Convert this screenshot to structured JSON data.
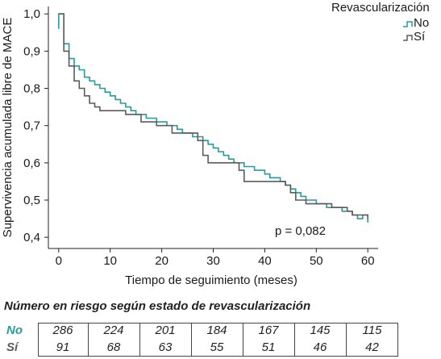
{
  "chart_data": {
    "type": "line",
    "subtype": "kaplan-meier-step",
    "ylabel": "Supervivencia acumulada libre de MACE",
    "xlabel": "Tiempo de seguimiento (meses)",
    "xlim": [
      -2,
      62
    ],
    "ylim": [
      0.37,
      1.02
    ],
    "x_ticks": [
      0,
      10,
      20,
      30,
      40,
      50,
      60
    ],
    "y_ticks": [
      0.4,
      0.5,
      0.6,
      0.7,
      0.8,
      0.9,
      1.0
    ],
    "x_tick_labels": [
      "0",
      "10",
      "20",
      "30",
      "40",
      "50",
      "60"
    ],
    "y_tick_labels": [
      "0,4",
      "0,5",
      "0,6",
      "0,7",
      "0,8",
      "0,9",
      "1,0"
    ],
    "grid": false,
    "legend": {
      "title": "Revascularización",
      "placement": "top-right"
    },
    "annotation": "p = 0,082",
    "series": [
      {
        "name": "No",
        "color": "#2a9a9e",
        "points": [
          [
            0,
            0.96
          ],
          [
            0,
            1.0
          ],
          [
            1,
            1.0
          ],
          [
            1,
            0.92
          ],
          [
            2,
            0.92
          ],
          [
            2,
            0.88
          ],
          [
            3,
            0.88
          ],
          [
            3,
            0.86
          ],
          [
            4,
            0.86
          ],
          [
            4,
            0.85
          ],
          [
            5,
            0.85
          ],
          [
            5,
            0.83
          ],
          [
            6,
            0.83
          ],
          [
            6,
            0.82
          ],
          [
            7,
            0.82
          ],
          [
            7,
            0.81
          ],
          [
            8,
            0.81
          ],
          [
            8,
            0.8
          ],
          [
            9,
            0.8
          ],
          [
            9,
            0.79
          ],
          [
            10,
            0.79
          ],
          [
            10,
            0.78
          ],
          [
            11,
            0.78
          ],
          [
            11,
            0.77
          ],
          [
            12,
            0.77
          ],
          [
            12,
            0.76
          ],
          [
            13,
            0.76
          ],
          [
            13,
            0.75
          ],
          [
            14,
            0.75
          ],
          [
            14,
            0.74
          ],
          [
            15,
            0.74
          ],
          [
            15,
            0.73
          ],
          [
            17,
            0.73
          ],
          [
            17,
            0.72
          ],
          [
            19,
            0.72
          ],
          [
            19,
            0.71
          ],
          [
            21,
            0.71
          ],
          [
            21,
            0.7
          ],
          [
            23,
            0.7
          ],
          [
            23,
            0.69
          ],
          [
            24,
            0.69
          ],
          [
            24,
            0.68
          ],
          [
            26,
            0.68
          ],
          [
            26,
            0.67
          ],
          [
            28,
            0.67
          ],
          [
            28,
            0.66
          ],
          [
            29,
            0.66
          ],
          [
            29,
            0.65
          ],
          [
            30,
            0.65
          ],
          [
            30,
            0.64
          ],
          [
            31,
            0.64
          ],
          [
            31,
            0.63
          ],
          [
            32,
            0.63
          ],
          [
            32,
            0.62
          ],
          [
            33,
            0.62
          ],
          [
            33,
            0.61
          ],
          [
            34,
            0.61
          ],
          [
            34,
            0.6
          ],
          [
            36,
            0.6
          ],
          [
            36,
            0.59
          ],
          [
            38,
            0.59
          ],
          [
            38,
            0.58
          ],
          [
            40,
            0.58
          ],
          [
            40,
            0.57
          ],
          [
            41,
            0.57
          ],
          [
            41,
            0.56
          ],
          [
            43,
            0.56
          ],
          [
            43,
            0.55
          ],
          [
            44,
            0.55
          ],
          [
            44,
            0.54
          ],
          [
            45,
            0.54
          ],
          [
            45,
            0.53
          ],
          [
            46,
            0.53
          ],
          [
            46,
            0.52
          ],
          [
            47,
            0.52
          ],
          [
            47,
            0.51
          ],
          [
            48,
            0.51
          ],
          [
            48,
            0.5
          ],
          [
            50,
            0.5
          ],
          [
            50,
            0.49
          ],
          [
            52,
            0.49
          ],
          [
            52,
            0.48
          ],
          [
            55,
            0.48
          ],
          [
            55,
            0.47
          ],
          [
            57,
            0.47
          ],
          [
            57,
            0.46
          ],
          [
            58,
            0.46
          ],
          [
            58,
            0.45
          ],
          [
            59,
            0.45
          ],
          [
            59,
            0.46
          ],
          [
            60,
            0.46
          ],
          [
            60,
            0.44
          ]
        ]
      },
      {
        "name": "Sí",
        "color": "#5c5c5c",
        "points": [
          [
            0,
            1.0
          ],
          [
            1,
            1.0
          ],
          [
            1,
            0.9
          ],
          [
            2,
            0.9
          ],
          [
            2,
            0.86
          ],
          [
            3,
            0.86
          ],
          [
            3,
            0.82
          ],
          [
            4,
            0.82
          ],
          [
            4,
            0.8
          ],
          [
            5,
            0.8
          ],
          [
            5,
            0.78
          ],
          [
            6,
            0.78
          ],
          [
            6,
            0.76
          ],
          [
            7,
            0.76
          ],
          [
            7,
            0.75
          ],
          [
            8,
            0.75
          ],
          [
            8,
            0.74
          ],
          [
            13,
            0.74
          ],
          [
            13,
            0.73
          ],
          [
            16,
            0.73
          ],
          [
            16,
            0.71
          ],
          [
            19,
            0.71
          ],
          [
            19,
            0.7
          ],
          [
            22,
            0.7
          ],
          [
            22,
            0.68
          ],
          [
            27,
            0.68
          ],
          [
            27,
            0.66
          ],
          [
            28,
            0.66
          ],
          [
            28,
            0.62
          ],
          [
            29,
            0.62
          ],
          [
            29,
            0.6
          ],
          [
            35,
            0.6
          ],
          [
            35,
            0.58
          ],
          [
            36,
            0.58
          ],
          [
            36,
            0.55
          ],
          [
            44,
            0.55
          ],
          [
            44,
            0.54
          ],
          [
            45,
            0.54
          ],
          [
            45,
            0.52
          ],
          [
            46,
            0.52
          ],
          [
            46,
            0.5
          ],
          [
            48,
            0.5
          ],
          [
            48,
            0.49
          ],
          [
            53,
            0.49
          ],
          [
            53,
            0.48
          ],
          [
            56,
            0.48
          ],
          [
            56,
            0.47
          ],
          [
            57,
            0.47
          ],
          [
            57,
            0.46
          ],
          [
            60,
            0.46
          ],
          [
            60,
            0.45
          ]
        ]
      }
    ]
  },
  "risk_table": {
    "title": "Número en riesgo según estado de revascularización",
    "rows": [
      {
        "name": "No",
        "color": "#2a9a9e",
        "values": [
          "286",
          "224",
          "201",
          "184",
          "167",
          "145",
          "115"
        ]
      },
      {
        "name": "Sí",
        "color": "#5c5c5c",
        "values": [
          "91",
          "68",
          "63",
          "55",
          "51",
          "46",
          "42"
        ]
      }
    ]
  }
}
